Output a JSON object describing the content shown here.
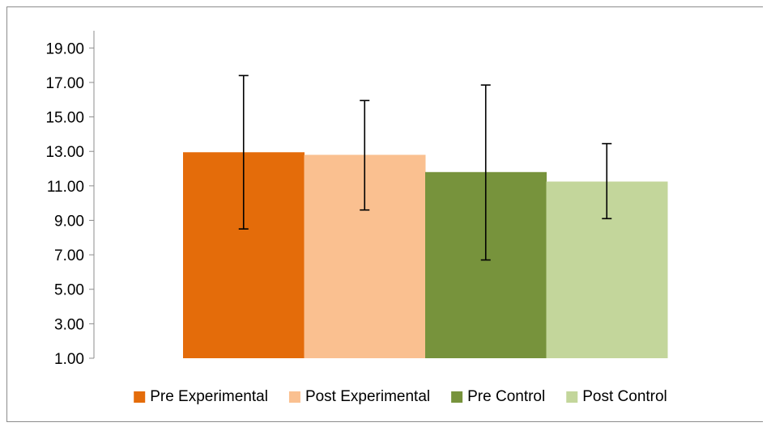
{
  "chart_data": {
    "type": "bar",
    "title": "",
    "xlabel": "",
    "ylabel": "",
    "ylim": [
      1,
      20
    ],
    "y_ticks": [
      "1.00",
      "3.00",
      "5.00",
      "7.00",
      "9.00",
      "11.00",
      "13.00",
      "15.00",
      "17.00",
      "19.00"
    ],
    "grid": false,
    "legend_position": "bottom",
    "error_bars": true,
    "series": [
      {
        "name": "Pre Experimental",
        "value": 12.95,
        "error_low": 8.5,
        "error_high": 17.4,
        "color": "#E46C0A"
      },
      {
        "name": "Post Experimental",
        "value": 12.8,
        "error_low": 9.6,
        "error_high": 15.95,
        "color": "#FAC090"
      },
      {
        "name": "Pre Control",
        "value": 11.8,
        "error_low": 6.7,
        "error_high": 16.85,
        "color": "#77933C"
      },
      {
        "name": "Post Control",
        "value": 11.25,
        "error_low": 9.1,
        "error_high": 13.45,
        "color": "#C3D69B"
      }
    ]
  }
}
